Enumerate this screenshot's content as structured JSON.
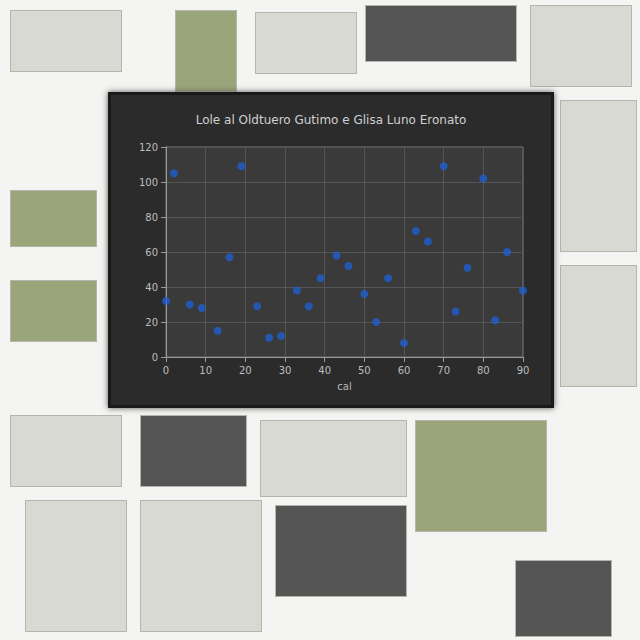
{
  "chart_data": {
    "type": "scatter",
    "title": "Lole al Oldtuero Gutimo e Glisa Luno Eronato",
    "x_label": "cal",
    "x": [
      2,
      19,
      70,
      80,
      16,
      43,
      46,
      63,
      66,
      86,
      76,
      0,
      6,
      9,
      23,
      33,
      39,
      36,
      50,
      56,
      73,
      90,
      13,
      26,
      29,
      53,
      60,
      83
    ],
    "y": [
      105,
      109,
      109,
      102,
      57,
      58,
      52,
      72,
      66,
      60,
      51,
      32,
      30,
      28,
      29,
      38,
      45,
      29,
      36,
      45,
      26,
      38,
      15,
      11,
      12,
      20,
      8,
      21
    ],
    "color": "#1f5fd0",
    "marker": "circle",
    "xlim": [
      0,
      90
    ],
    "xticks": [
      0,
      10,
      20,
      30,
      40,
      50,
      60,
      70,
      80,
      90
    ],
    "ylim": [
      0,
      120
    ],
    "yticks": [
      0,
      20,
      40,
      60,
      80,
      100,
      120
    ],
    "grid": true
  }
}
